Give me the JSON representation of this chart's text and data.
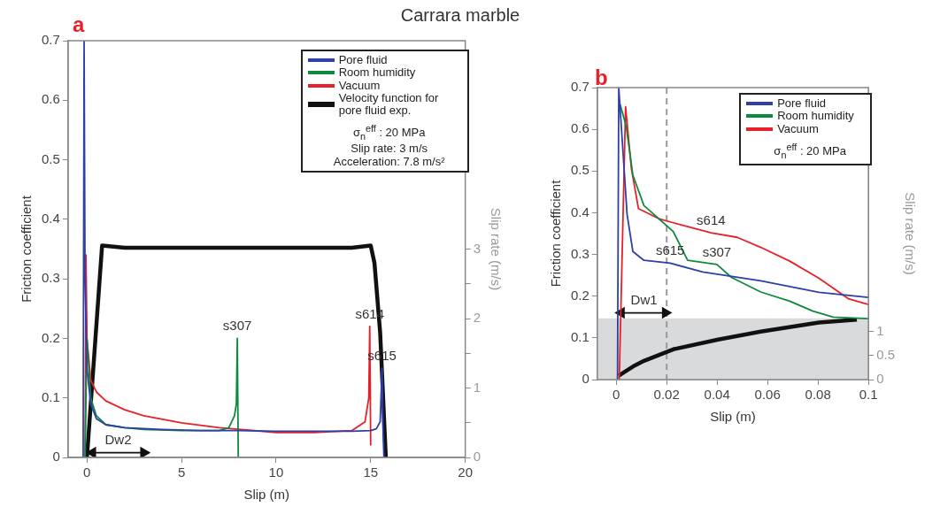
{
  "chart_data": [
    {
      "type": "line",
      "title": "Carrara marble",
      "subtitle": "a",
      "xlabel": "Slip (m)",
      "ylabel": "Friction coefficient",
      "y2label": "Slip rate (m/s)",
      "xlim": [
        -1,
        20
      ],
      "xticks": [
        0,
        5,
        10,
        15,
        20
      ],
      "ylim": [
        0,
        0.7
      ],
      "yticks": [
        0,
        0.1,
        0.2,
        0.3,
        0.4,
        0.5,
        0.6,
        0.7
      ],
      "y2lim": [
        0,
        6
      ],
      "y2ticks": [
        0,
        {
          "value": 0.5,
          "label": null
        },
        1,
        {
          "value": 1.5,
          "label": null
        },
        2,
        {
          "value": 2.5,
          "label": null
        },
        3
      ],
      "legend": "top right",
      "series": [
        {
          "name": "Pore fluid",
          "color": "#2e3fa8",
          "x": [
            -0.2,
            -0.15,
            -0.1,
            0,
            0.2,
            0.5,
            1,
            2,
            4,
            6,
            8,
            10,
            12,
            14,
            15,
            15.3,
            15.5,
            15.6,
            15.65,
            15.7
          ],
          "values": [
            0,
            0.7,
            0.3,
            0.15,
            0.09,
            0.065,
            0.055,
            0.05,
            0.047,
            0.045,
            0.045,
            0.044,
            0.044,
            0.044,
            0.045,
            0.048,
            0.06,
            0.15,
            0.05,
            0
          ]
        },
        {
          "name": "Room humidity",
          "color": "#0e8a3c",
          "x": [
            -0.1,
            0,
            0.2,
            0.5,
            1,
            2,
            3,
            5,
            7,
            7.5,
            7.8,
            7.9,
            7.95,
            8.0
          ],
          "values": [
            0,
            0.2,
            0.1,
            0.07,
            0.055,
            0.05,
            0.047,
            0.045,
            0.045,
            0.05,
            0.07,
            0.09,
            0.2,
            0
          ]
        },
        {
          "name": "Vacuum",
          "color": "#e8202a",
          "x": [
            -0.1,
            -0.05,
            0,
            0.2,
            0.5,
            1,
            2,
            3,
            5,
            7,
            10,
            12,
            14,
            14.7,
            14.9,
            14.95,
            15.0
          ],
          "values": [
            0,
            0.34,
            0.2,
            0.13,
            0.11,
            0.095,
            0.08,
            0.07,
            0.058,
            0.05,
            0.042,
            0.042,
            0.045,
            0.06,
            0.1,
            0.22,
            0.02
          ]
        },
        {
          "name": "Velocity function for pore fluid exp.",
          "color": "#111111",
          "axis": "y2",
          "x": [
            0,
            0.8,
            2,
            5,
            8,
            10,
            12,
            14,
            15,
            15.2,
            15.5,
            15.8
          ],
          "values": [
            0,
            3.05,
            3.02,
            3.02,
            3.02,
            3.02,
            3.02,
            3.02,
            3.05,
            2.8,
            1.8,
            0
          ]
        },
        {
          "color": "#111111",
          "marker": "triangle",
          "x": [
            0.3,
            1.65,
            3
          ],
          "values": [
            0.008,
            0.008,
            0.008
          ]
        }
      ],
      "annotations": [
        "σ$_{n}$$^{eff}$  :  20 MPa",
        "Slip rate: 3 m/s",
        "Acceleration: 7.8 m/s²",
        {
          "text": "s307",
          "x": 7.95,
          "y": 0.2
        },
        {
          "text": "s614",
          "x": 14.95,
          "y": 0.22
        },
        {
          "text": "s615",
          "x": 15.6,
          "y": 0.15
        },
        {
          "text": "Dw2",
          "x": 1.65,
          "y": 0.008
        }
      ]
    },
    {
      "type": "line",
      "subtitle": "b",
      "xlabel": "Slip (m)",
      "ylabel": "Friction coefficient",
      "y2label": "Slip rate (m/s)",
      "xlim": [
        -0.0075,
        0.1
      ],
      "xticks": [
        0,
        0.02,
        0.04,
        0.06,
        0.08,
        0.1
      ],
      "ylim": [
        0,
        0.7
      ],
      "yticks": [
        0,
        0.1,
        0.2,
        0.3,
        0.4,
        0.5,
        0.6,
        0.7
      ],
      "y2lim": [
        0,
        6.08
      ],
      "y2ticks": [
        0,
        0.5,
        1
      ],
      "legend": "top right",
      "bands": [
        {
          "axis": "y",
          "from": 0,
          "to": 0.147,
          "color": "#d9dadb"
        }
      ],
      "ref_lines": [
        {
          "axis": "x",
          "value": 0.02,
          "color": "#999999",
          "line_style": "dashed"
        }
      ],
      "series": [
        {
          "name": "Pore fluid",
          "color": "#2e3fa8",
          "x": [
            0.0005,
            0.001,
            0.0043,
            0.0066,
            0.011,
            0.0214,
            0.0343,
            0.0573,
            0.0804,
            0.1
          ],
          "values": [
            0,
            0.7,
            0.396,
            0.307,
            0.286,
            0.279,
            0.258,
            0.237,
            0.209,
            0.197
          ]
        },
        {
          "name": "Room humidity",
          "color": "#0e8a3c",
          "x": [
            0.0015,
            0.0039,
            0.0066,
            0.011,
            0.0226,
            0.0283,
            0.0399,
            0.0457,
            0.0573,
            0.0688,
            0.078,
            0.086,
            0.1
          ],
          "values": [
            0.66,
            0.609,
            0.49,
            0.417,
            0.355,
            0.286,
            0.276,
            0.245,
            0.21,
            0.188,
            0.164,
            0.15,
            0.146
          ]
        },
        {
          "name": "Vacuum",
          "color": "#e8202a",
          "x": [
            0.0012,
            0.0037,
            0.006,
            0.0088,
            0.0168,
            0.0226,
            0.0376,
            0.048,
            0.0573,
            0.0688,
            0.0804,
            0.092,
            0.1
          ],
          "values": [
            0,
            0.654,
            0.506,
            0.41,
            0.386,
            0.376,
            0.352,
            0.341,
            0.317,
            0.284,
            0.243,
            0.194,
            0.18
          ]
        },
        {
          "color": "#111111",
          "axis": "y2",
          "x": [
            0.001,
            0.003,
            0.0066,
            0.011,
            0.0226,
            0.04,
            0.0573,
            0.0804,
            0.0954
          ],
          "values": [
            0.08,
            0.15,
            0.27,
            0.39,
            0.63,
            0.83,
            1.0,
            1.19,
            1.25
          ]
        },
        {
          "color": "#111111",
          "marker": "triangle",
          "x": [
            0.002,
            0.011,
            0.0195
          ],
          "values": [
            0.16,
            0.16,
            0.16
          ]
        }
      ],
      "annotations": [
        "σ$_{n}$$^{eff}$  :  20 MPa",
        {
          "text": "s614",
          "x": 0.0376,
          "y": 0.352
        },
        {
          "text": "s307",
          "x": 0.0399,
          "y": 0.276
        },
        {
          "text": "s615",
          "x": 0.0214,
          "y": 0.279
        },
        {
          "text": "Dw1",
          "x": 0.011,
          "y": 0.16
        }
      ]
    }
  ]
}
